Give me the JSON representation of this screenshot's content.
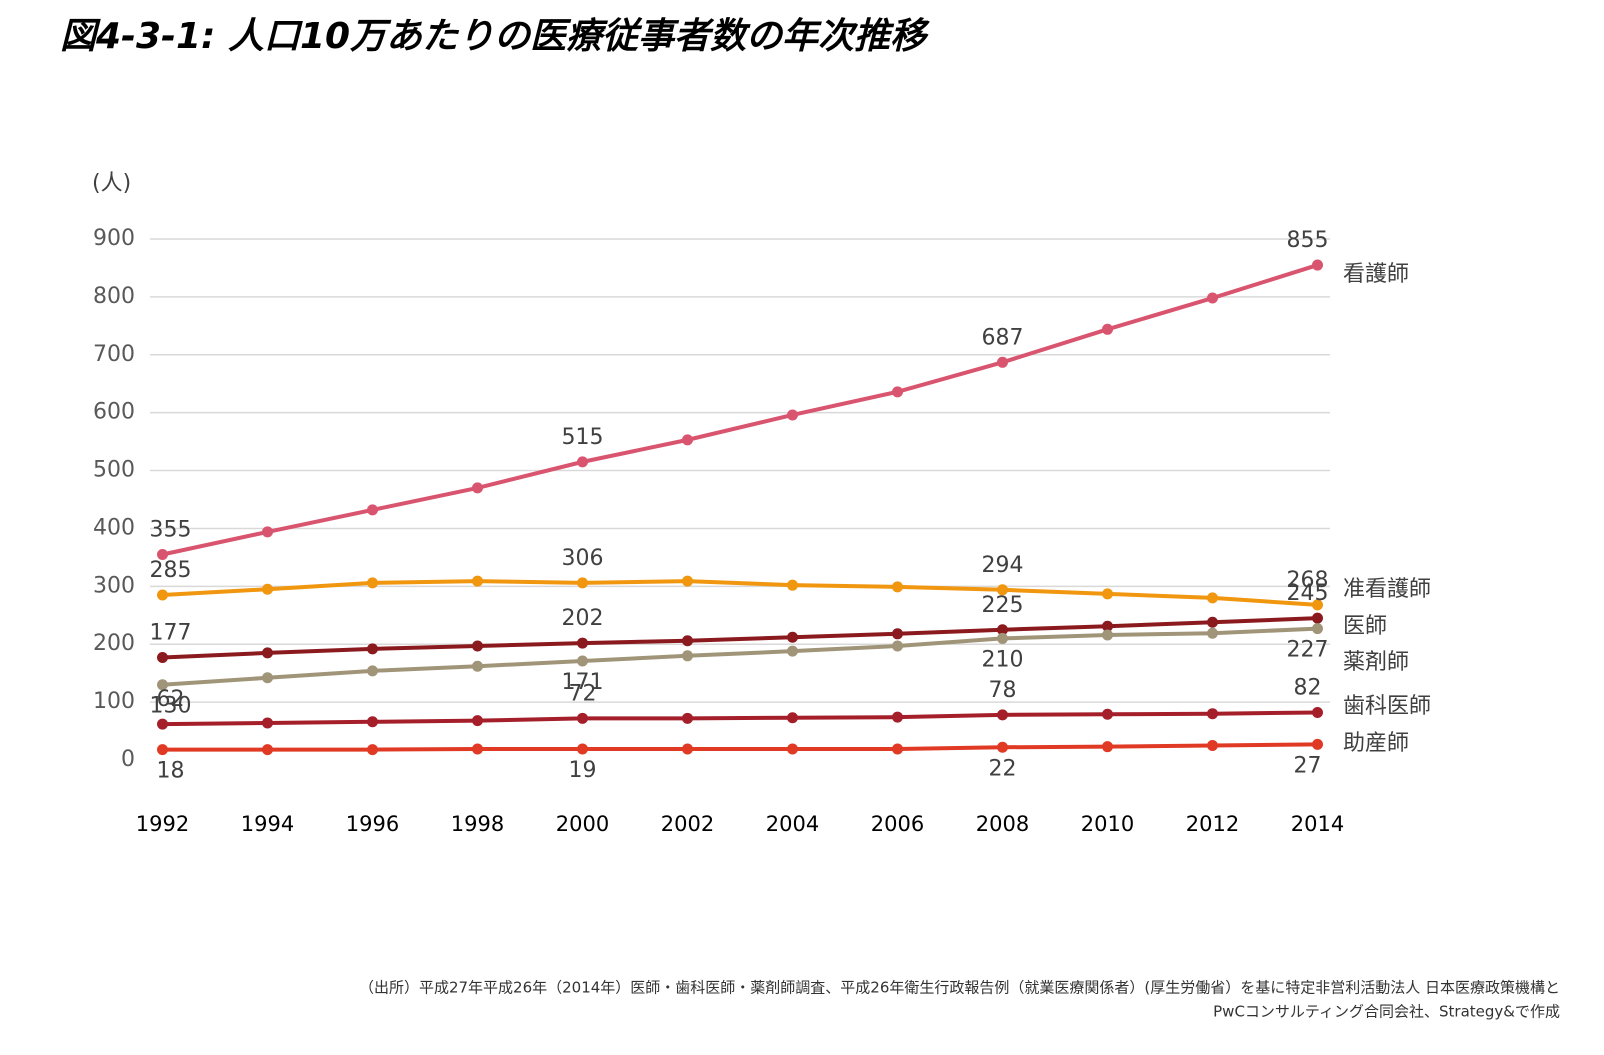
{
  "chart_data": {
    "type": "line",
    "title": "図4-3-1: 人口10万あたりの医療従事者数の年次推移",
    "y_label": "(人)",
    "x": [
      1992,
      1994,
      1996,
      1998,
      2000,
      2002,
      2004,
      2006,
      2008,
      2010,
      2012,
      2014
    ],
    "xlim": [
      1991,
      2015
    ],
    "xticks": [
      1992,
      1994,
      1996,
      1998,
      2000,
      2002,
      2004,
      2006,
      2008,
      2010,
      2012,
      2014
    ],
    "ylim": [
      0,
      900
    ],
    "yticks": [
      0,
      100,
      200,
      300,
      400,
      500,
      600,
      700,
      800,
      900
    ],
    "grid": true,
    "labeled_points": [
      0,
      4,
      8,
      11
    ],
    "series": [
      {
        "name": "看護師",
        "color": "#d9546e",
        "label_position": "above",
        "values": [
          355,
          394,
          432,
          470,
          515,
          553,
          596,
          636,
          687,
          744,
          798,
          855
        ]
      },
      {
        "name": "准看護師",
        "color": "#f0960f",
        "label_position": "above",
        "values": [
          285,
          295,
          306,
          309,
          306,
          309,
          302,
          299,
          294,
          287,
          280,
          268
        ]
      },
      {
        "name": "医師",
        "color": "#8b1a1f",
        "label_position": "above",
        "values": [
          177,
          185,
          192,
          197,
          202,
          206,
          212,
          218,
          225,
          231,
          238,
          245
        ]
      },
      {
        "name": "薬剤師",
        "color": "#a09578",
        "label_position": "below",
        "values": [
          130,
          142,
          154,
          162,
          171,
          180,
          188,
          197,
          210,
          216,
          219,
          227
        ]
      },
      {
        "name": "歯科医師",
        "color": "#a51f2a",
        "label_position": "above",
        "values": [
          62,
          64,
          66,
          68,
          72,
          72,
          73,
          74,
          78,
          79,
          80,
          82
        ]
      },
      {
        "name": "助産師",
        "color": "#e03a25",
        "label_position": "below",
        "values": [
          18,
          18,
          18,
          19,
          19,
          19,
          19,
          19,
          22,
          23,
          25,
          27
        ]
      }
    ]
  },
  "footer": {
    "line1": "（出所）平成27年平成26年（2014年）医師・歯科医師・薬剤師調査、平成26年衛生行政報告例（就業医療関係者）(厚生労働省）を基に特定非営利活動法人 日本医療政策機構と",
    "line2": "PwCコンサルティング合同会社、Strategy&で作成"
  }
}
